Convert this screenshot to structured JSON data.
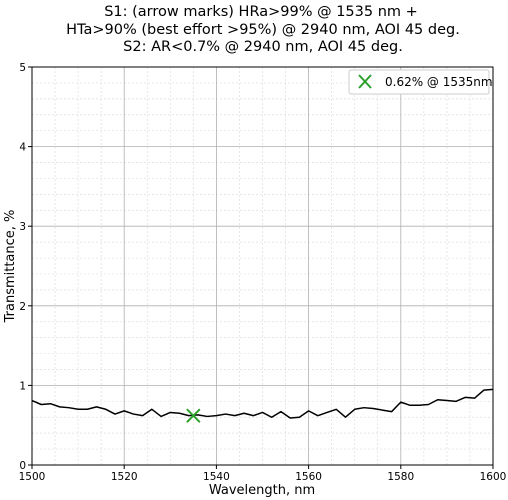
{
  "chart_data": {
    "type": "line",
    "title_lines": [
      "S1: (arrow marks) HRa>99% @ 1535 nm +",
      "HTa>90% (best effort >95%) @ 2940 nm, AOI 45 deg.",
      "S2: AR<0.7% @ 2940 nm, AOI 45 deg."
    ],
    "xlabel": "Wavelength, nm",
    "ylabel": "Transmittance, %",
    "xlim": [
      1500,
      1600
    ],
    "ylim": [
      0,
      5
    ],
    "xticks": [
      1500,
      1520,
      1540,
      1560,
      1580,
      1600
    ],
    "yticks": [
      0,
      1,
      2,
      3,
      4,
      5
    ],
    "grid": true,
    "minor_grid": true,
    "legend_position": "top-right",
    "series": [
      {
        "color": "#000000",
        "x": [
          1500,
          1502,
          1504,
          1506,
          1508,
          1510,
          1512,
          1514,
          1516,
          1518,
          1520,
          1522,
          1524,
          1526,
          1528,
          1530,
          1532,
          1534,
          1536,
          1538,
          1540,
          1542,
          1544,
          1546,
          1548,
          1550,
          1552,
          1554,
          1556,
          1558,
          1560,
          1562,
          1564,
          1566,
          1568,
          1570,
          1572,
          1574,
          1576,
          1578,
          1580,
          1582,
          1584,
          1586,
          1588,
          1590,
          1592,
          1594,
          1596,
          1598,
          1600
        ],
        "y": [
          0.81,
          0.76,
          0.77,
          0.73,
          0.72,
          0.7,
          0.7,
          0.73,
          0.7,
          0.64,
          0.68,
          0.64,
          0.62,
          0.7,
          0.61,
          0.66,
          0.65,
          0.62,
          0.63,
          0.61,
          0.62,
          0.64,
          0.62,
          0.65,
          0.62,
          0.66,
          0.6,
          0.67,
          0.59,
          0.6,
          0.68,
          0.62,
          0.66,
          0.7,
          0.6,
          0.7,
          0.72,
          0.71,
          0.69,
          0.67,
          0.79,
          0.75,
          0.75,
          0.76,
          0.82,
          0.81,
          0.8,
          0.85,
          0.84,
          0.94,
          0.95
        ]
      }
    ],
    "markers": [
      {
        "x": 1535,
        "y": 0.62,
        "label": "0.62% @ 1535nm",
        "color": "#2ca02c",
        "marker": "x"
      }
    ]
  }
}
